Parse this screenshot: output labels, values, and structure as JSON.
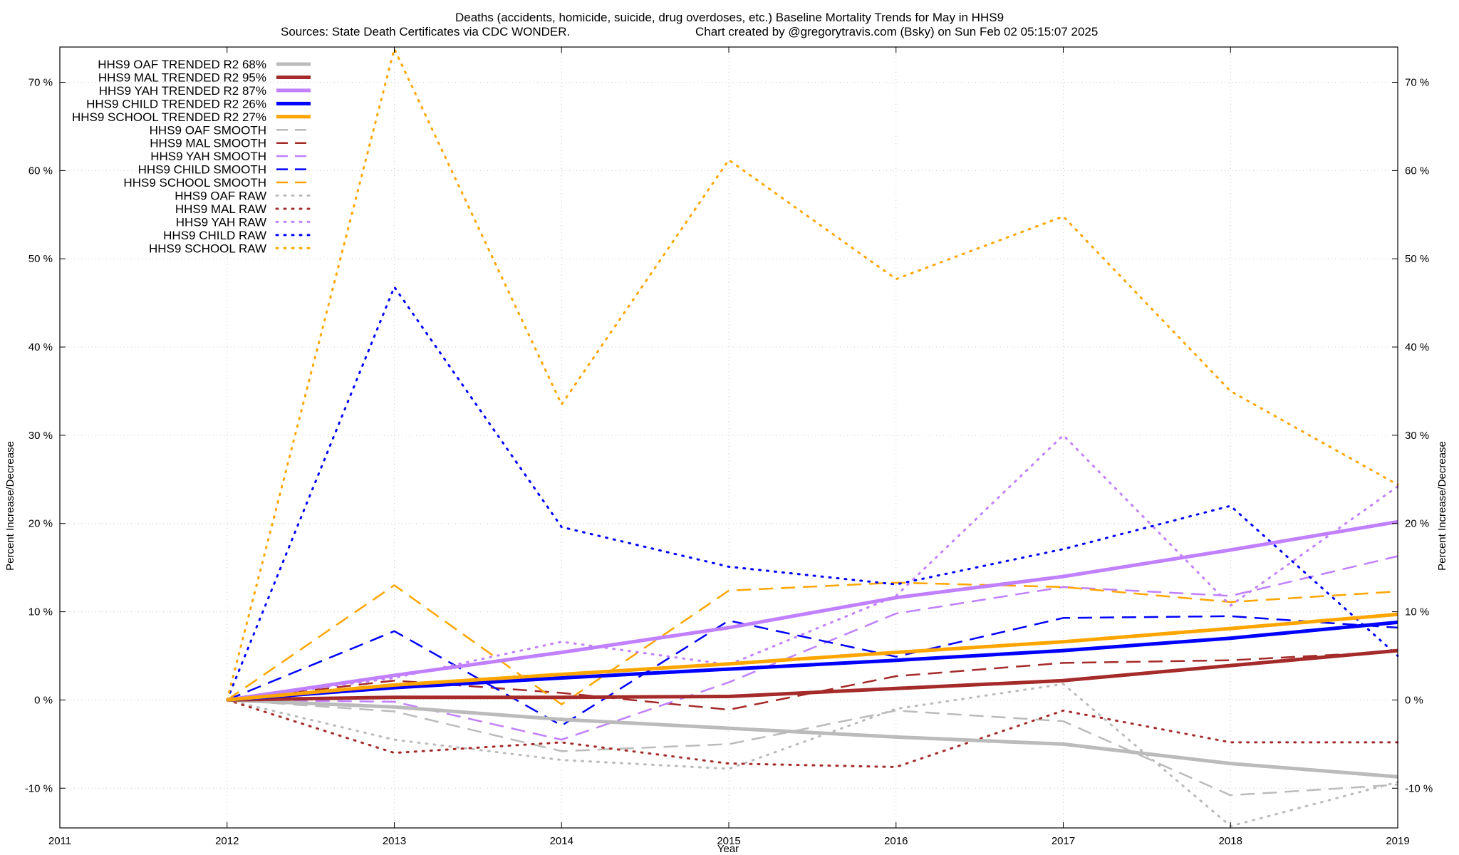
{
  "chart_data": {
    "type": "line",
    "title_line1": "Deaths (accidents, homicide, suicide, drug overdoses, etc.)  Baseline Mortality Trends for May in HHS9",
    "title_line2_left": "Sources: State Death Certificates via CDC WONDER.",
    "title_line2_right": "Chart created by @gregorytravis.com (Bsky) on Sun Feb 02 05:15:07 2025",
    "xlabel": "Year",
    "ylabel": "Percent Increase/Decrease",
    "xlim": [
      2011,
      2019
    ],
    "ylim": [
      -14.5,
      74
    ],
    "x_ticks": [
      2011,
      2012,
      2013,
      2014,
      2015,
      2016,
      2017,
      2018,
      2019
    ],
    "x_tick_labels": [
      "2011",
      "2012",
      "2013",
      "2014",
      "2015",
      "2016",
      "2017",
      "2018",
      "2019"
    ],
    "y_ticks": [
      -10,
      0,
      10,
      20,
      30,
      40,
      50,
      60,
      70
    ],
    "y_tick_labels": [
      "-10 %",
      "0 %",
      "10 %",
      "20 %",
      "30 %",
      "40 %",
      "50 %",
      "60 %",
      "70 %"
    ],
    "grid": true,
    "legend_position": "top-left",
    "x": [
      2012,
      2013,
      2014,
      2015,
      2016,
      2017,
      2018,
      2019
    ],
    "series": [
      {
        "name": "HHS9 OAF TRENDED R2  68%",
        "color": "#bbbbbb",
        "style": "solid",
        "values": [
          0,
          -0.8,
          -2.2,
          -3.2,
          -4.2,
          -5.0,
          -7.2,
          -8.7
        ]
      },
      {
        "name": "HHS9 MAL TRENDED R2  95%",
        "color": "#a52a2a",
        "style": "solid",
        "values": [
          0,
          0.3,
          0.3,
          0.4,
          1.3,
          2.2,
          3.9,
          5.6
        ]
      },
      {
        "name": "HHS9 YAH TRENDED R2  87%",
        "color": "#c080ff",
        "style": "solid",
        "values": [
          0,
          2.8,
          5.4,
          8.2,
          11.6,
          14.0,
          17.0,
          20.2
        ]
      },
      {
        "name": "HHS9 CHILD TRENDED R2  26%",
        "color": "#0000ff",
        "style": "solid",
        "values": [
          0,
          1.4,
          2.5,
          3.5,
          4.5,
          5.6,
          7.0,
          8.8
        ]
      },
      {
        "name": "HHS9 SCHOOL TRENDED R2  27%",
        "color": "#ffa500",
        "style": "solid",
        "values": [
          0,
          1.7,
          2.9,
          4.1,
          5.4,
          6.6,
          8.1,
          9.7
        ]
      },
      {
        "name": "HHS9 OAF SMOOTH",
        "color": "#bbbbbb",
        "style": "dashed",
        "values": [
          0,
          -1.3,
          -5.8,
          -5.0,
          -1.2,
          -2.4,
          -10.8,
          -9.6
        ]
      },
      {
        "name": "HHS9 MAL SMOOTH",
        "color": "#a52a2a",
        "style": "dashed",
        "values": [
          0,
          2.2,
          0.8,
          -1.1,
          2.7,
          4.2,
          4.5,
          5.5
        ]
      },
      {
        "name": "HHS9 YAH SMOOTH",
        "color": "#c080ff",
        "style": "dashed",
        "values": [
          0,
          -0.2,
          -4.5,
          2.0,
          9.8,
          12.8,
          11.8,
          16.3
        ]
      },
      {
        "name": "HHS9 CHILD SMOOTH",
        "color": "#0000ff",
        "style": "dashed",
        "values": [
          0,
          7.8,
          -2.9,
          9.0,
          4.9,
          9.3,
          9.5,
          8.2
        ]
      },
      {
        "name": "HHS9 SCHOOL SMOOTH",
        "color": "#ffa500",
        "style": "dashed",
        "values": [
          0,
          13.0,
          -0.5,
          12.4,
          13.3,
          12.8,
          11.1,
          12.3
        ]
      },
      {
        "name": "HHS9 OAF RAW",
        "color": "#bbbbbb",
        "style": "dotted",
        "values": [
          0,
          -4.5,
          -6.8,
          -7.8,
          -1.0,
          1.8,
          -14.3,
          -9.3
        ]
      },
      {
        "name": "HHS9 MAL RAW",
        "color": "#a52a2a",
        "style": "dotted",
        "values": [
          0,
          -6.0,
          -4.8,
          -7.2,
          -7.6,
          -1.2,
          -4.8,
          -4.8
        ]
      },
      {
        "name": "HHS9 YAH RAW",
        "color": "#c080ff",
        "style": "dotted",
        "values": [
          0,
          2.5,
          6.6,
          4.0,
          11.8,
          30.0,
          10.7,
          24.2
        ]
      },
      {
        "name": "HHS9 CHILD RAW",
        "color": "#0000ff",
        "style": "dotted",
        "values": [
          0,
          46.8,
          19.6,
          15.1,
          13.1,
          17.1,
          22.0,
          5.0
        ]
      },
      {
        "name": "HHS9 SCHOOL RAW",
        "color": "#ffa500",
        "style": "dotted",
        "values": [
          0,
          73.8,
          33.5,
          61.2,
          47.7,
          54.8,
          35.0,
          24.4
        ]
      }
    ]
  }
}
